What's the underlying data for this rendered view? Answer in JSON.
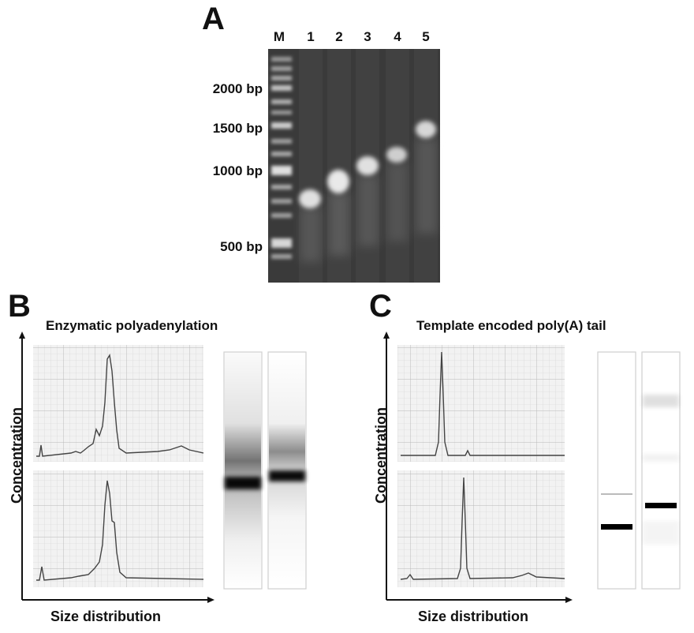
{
  "panel_a": {
    "letter": "A",
    "lanes": [
      "M",
      "1",
      "2",
      "3",
      "4",
      "5"
    ],
    "marker_labels": [
      "2000 bp",
      "1500 bp",
      "1000 bp",
      "500 bp"
    ]
  },
  "panel_b": {
    "letter": "B",
    "title": "Enzymatic polyadenylation",
    "ylabel": "Concentration",
    "xlabel": "Size distribution"
  },
  "panel_c": {
    "letter": "C",
    "title": "Template encoded poly(A) tail",
    "ylabel": "Concentration",
    "xlabel": "Size distribution"
  },
  "colors": {
    "gel_background": "#3a3a3a",
    "band": "#f2f2f2",
    "trace_grid": "#e9e9e9",
    "trace_line": "#444444"
  }
}
